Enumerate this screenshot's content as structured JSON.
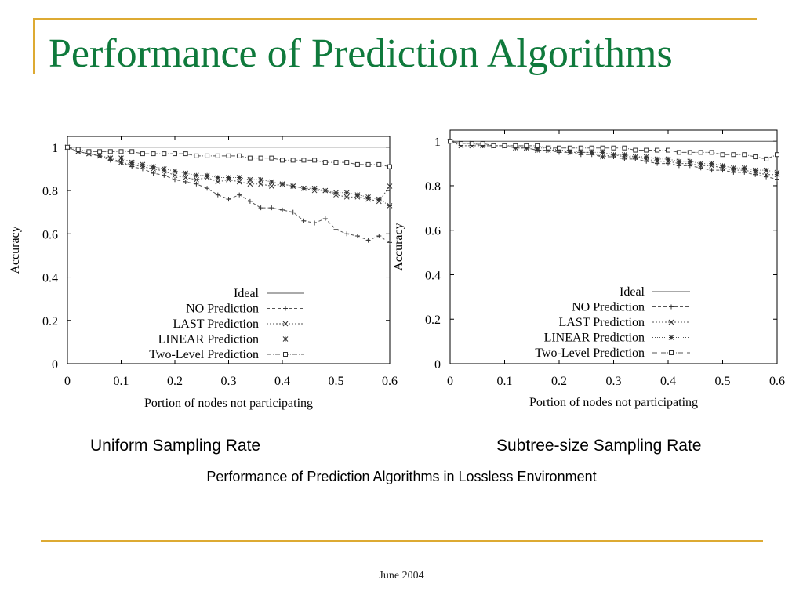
{
  "slide": {
    "title": "Performance of Prediction Algorithms",
    "caption_left": "Uniform Sampling Rate",
    "caption_right": "Subtree-size Sampling Rate",
    "subcaption": "Performance of Prediction Algorithms in Lossless Environment",
    "footer": "June 2004",
    "colors": {
      "title": "#0F7A3C",
      "rule": "#DDAA33"
    }
  },
  "chart_data": [
    {
      "type": "line",
      "xlabel": "Portion of nodes not participating",
      "ylabel": "Accuracy",
      "xlim": [
        0,
        0.6
      ],
      "ylim": [
        0,
        1.05
      ],
      "x_ticks": [
        "0",
        "0.1",
        "0.2",
        "0.3",
        "0.4",
        "0.5",
        "0.6"
      ],
      "y_ticks": [
        "0",
        "0.2",
        "0.4",
        "0.6",
        "0.8",
        "1"
      ],
      "legend_position": "bottom-right",
      "x": [
        0,
        0.02,
        0.04,
        0.06,
        0.08,
        0.1,
        0.12,
        0.14,
        0.16,
        0.18,
        0.2,
        0.22,
        0.24,
        0.26,
        0.28,
        0.3,
        0.32,
        0.34,
        0.36,
        0.38,
        0.4,
        0.42,
        0.44,
        0.46,
        0.48,
        0.5,
        0.52,
        0.54,
        0.56,
        0.58,
        0.6
      ],
      "series": [
        {
          "name": "Ideal",
          "marker": "none",
          "values": [
            1,
            1,
            1,
            1,
            1,
            1,
            1,
            1,
            1,
            1,
            1,
            1,
            1,
            1,
            1,
            1,
            1,
            1,
            1,
            1,
            1,
            1,
            1,
            1,
            1,
            1,
            1,
            1,
            1,
            1,
            1
          ]
        },
        {
          "name": "NO Prediction",
          "marker": "plus",
          "values": [
            1.0,
            0.98,
            0.97,
            0.96,
            0.94,
            0.93,
            0.91,
            0.9,
            0.88,
            0.87,
            0.85,
            0.84,
            0.83,
            0.81,
            0.78,
            0.76,
            0.78,
            0.75,
            0.72,
            0.72,
            0.71,
            0.7,
            0.66,
            0.65,
            0.67,
            0.62,
            0.6,
            0.59,
            0.57,
            0.59,
            0.56
          ]
        },
        {
          "name": "LAST Prediction",
          "marker": "cross",
          "values": [
            1.0,
            0.98,
            0.97,
            0.96,
            0.95,
            0.93,
            0.92,
            0.91,
            0.9,
            0.89,
            0.87,
            0.86,
            0.85,
            0.86,
            0.84,
            0.85,
            0.84,
            0.83,
            0.83,
            0.82,
            0.83,
            0.82,
            0.81,
            0.8,
            0.8,
            0.78,
            0.77,
            0.77,
            0.76,
            0.75,
            0.82
          ]
        },
        {
          "name": "LINEAR Prediction",
          "marker": "star",
          "values": [
            1.0,
            0.98,
            0.97,
            0.96,
            0.95,
            0.95,
            0.93,
            0.92,
            0.91,
            0.9,
            0.89,
            0.88,
            0.87,
            0.87,
            0.86,
            0.86,
            0.86,
            0.85,
            0.85,
            0.84,
            0.83,
            0.82,
            0.81,
            0.81,
            0.8,
            0.79,
            0.79,
            0.78,
            0.77,
            0.76,
            0.73
          ]
        },
        {
          "name": "Two-Level Prediction",
          "marker": "square",
          "values": [
            1.0,
            0.99,
            0.98,
            0.98,
            0.98,
            0.98,
            0.98,
            0.97,
            0.97,
            0.97,
            0.97,
            0.97,
            0.96,
            0.96,
            0.96,
            0.96,
            0.96,
            0.95,
            0.95,
            0.95,
            0.94,
            0.94,
            0.94,
            0.94,
            0.93,
            0.93,
            0.93,
            0.92,
            0.92,
            0.92,
            0.91
          ]
        }
      ]
    },
    {
      "type": "line",
      "xlabel": "Portion of nodes not participating",
      "ylabel": "Accuracy",
      "xlim": [
        0,
        0.6
      ],
      "ylim": [
        0,
        1.05
      ],
      "x_ticks": [
        "0",
        "0.1",
        "0.2",
        "0.3",
        "0.4",
        "0.5",
        "0.6"
      ],
      "y_ticks": [
        "0",
        "0.2",
        "0.4",
        "0.6",
        "0.8",
        "1"
      ],
      "legend_position": "bottom-right",
      "x": [
        0,
        0.02,
        0.04,
        0.06,
        0.08,
        0.1,
        0.12,
        0.14,
        0.16,
        0.18,
        0.2,
        0.22,
        0.24,
        0.26,
        0.28,
        0.3,
        0.32,
        0.34,
        0.36,
        0.38,
        0.4,
        0.42,
        0.44,
        0.46,
        0.48,
        0.5,
        0.52,
        0.54,
        0.56,
        0.58,
        0.6
      ],
      "series": [
        {
          "name": "Ideal",
          "marker": "none",
          "values": [
            1,
            1,
            1,
            1,
            1,
            1,
            1,
            1,
            1,
            1,
            1,
            1,
            1,
            1,
            1,
            1,
            1,
            1,
            1,
            1,
            1,
            1,
            1,
            1,
            1,
            1,
            1,
            1,
            1,
            1,
            1
          ]
        },
        {
          "name": "NO Prediction",
          "marker": "plus",
          "values": [
            1.0,
            0.99,
            0.99,
            0.98,
            0.98,
            0.98,
            0.97,
            0.97,
            0.96,
            0.96,
            0.95,
            0.95,
            0.94,
            0.94,
            0.93,
            0.93,
            0.92,
            0.92,
            0.91,
            0.9,
            0.9,
            0.89,
            0.89,
            0.88,
            0.87,
            0.87,
            0.86,
            0.86,
            0.85,
            0.84,
            0.83
          ]
        },
        {
          "name": "LAST Prediction",
          "marker": "cross",
          "values": [
            1.0,
            0.98,
            0.98,
            0.98,
            0.98,
            0.98,
            0.97,
            0.97,
            0.96,
            0.96,
            0.96,
            0.95,
            0.95,
            0.95,
            0.93,
            0.94,
            0.93,
            0.93,
            0.92,
            0.91,
            0.91,
            0.9,
            0.9,
            0.89,
            0.89,
            0.88,
            0.87,
            0.87,
            0.86,
            0.85,
            0.85
          ]
        },
        {
          "name": "LINEAR Prediction",
          "marker": "star",
          "values": [
            1.0,
            0.99,
            0.99,
            0.98,
            0.98,
            0.98,
            0.98,
            0.97,
            0.97,
            0.97,
            0.96,
            0.96,
            0.95,
            0.95,
            0.95,
            0.94,
            0.94,
            0.93,
            0.93,
            0.92,
            0.92,
            0.91,
            0.91,
            0.9,
            0.9,
            0.89,
            0.88,
            0.88,
            0.87,
            0.87,
            0.86
          ]
        },
        {
          "name": "Two-Level Prediction",
          "marker": "square",
          "values": [
            1.0,
            0.99,
            0.99,
            0.99,
            0.98,
            0.98,
            0.98,
            0.98,
            0.98,
            0.97,
            0.97,
            0.97,
            0.97,
            0.97,
            0.97,
            0.97,
            0.97,
            0.96,
            0.96,
            0.96,
            0.96,
            0.95,
            0.95,
            0.95,
            0.95,
            0.94,
            0.94,
            0.94,
            0.93,
            0.92,
            0.94
          ]
        }
      ]
    }
  ]
}
